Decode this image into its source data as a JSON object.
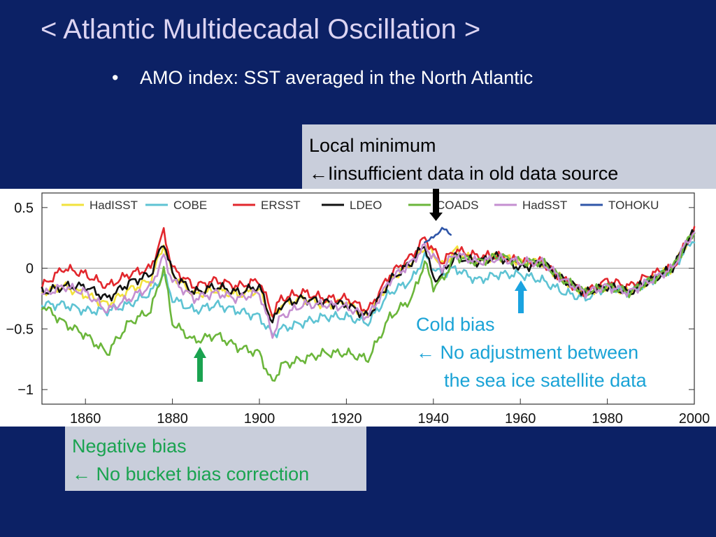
{
  "slide": {
    "title": "< Atlantic Multidecadal Oscillation >",
    "bullet_symbol": "•",
    "bullet_text": "AMO index: SST averaged in the North Atlantic"
  },
  "annotations": {
    "local_minimum": {
      "line1": "Local minimum",
      "line2": "←Iinsufficient data in old data source"
    },
    "cold_bias": {
      "line1": "Cold bias",
      "line2": "← No adjustment between",
      "line3": "the sea ice satellite data",
      "color": "#1aa3d6"
    },
    "negative_bias": {
      "line1": "Negative bias",
      "line2": "← No bucket bias correction",
      "color": "#1aa350"
    }
  },
  "colors": {
    "background": "#0c2165",
    "title": "#dcd4f2",
    "callout_box": "#c9cedb",
    "arrow_black": "#000000",
    "arrow_blue": "#1aa3e0",
    "arrow_green": "#1aa350"
  },
  "chart_data": {
    "type": "line",
    "title": "",
    "xlabel": "",
    "ylabel": "",
    "xlim": [
      1850,
      2000
    ],
    "ylim": [
      -1.12,
      0.62
    ],
    "xticks": [
      1860,
      1880,
      1900,
      1920,
      1940,
      1960,
      1980,
      2000
    ],
    "ytick_values": [
      0.5,
      0,
      -0.5,
      -1
    ],
    "ytick_labels": [
      "0.5",
      "0",
      "−0.5",
      "−1"
    ],
    "grid": false,
    "zero_line": true,
    "legend_position": "top",
    "x": [
      1850,
      1855,
      1860,
      1865,
      1870,
      1875,
      1878,
      1880,
      1885,
      1890,
      1895,
      1900,
      1903,
      1905,
      1910,
      1915,
      1920,
      1925,
      1930,
      1935,
      1938,
      1940,
      1942,
      1945,
      1950,
      1955,
      1960,
      1965,
      1970,
      1975,
      1980,
      1985,
      1990,
      1995,
      1998,
      2000
    ],
    "series": [
      {
        "name": "HadISST",
        "color": "#f2e23c",
        "values": [
          -0.2,
          -0.15,
          -0.22,
          -0.3,
          -0.18,
          -0.1,
          0.2,
          -0.05,
          -0.22,
          -0.18,
          -0.22,
          -0.18,
          -0.42,
          -0.3,
          -0.25,
          -0.3,
          -0.28,
          -0.4,
          -0.1,
          0.05,
          0.18,
          0.12,
          0.02,
          0.15,
          0.05,
          0.1,
          0.05,
          0.05,
          -0.1,
          -0.2,
          -0.15,
          -0.2,
          -0.1,
          0.0,
          0.18,
          0.28
        ]
      },
      {
        "name": "COBE",
        "color": "#5ec3d3",
        "values": [
          -0.3,
          -0.3,
          -0.35,
          -0.35,
          -0.3,
          -0.2,
          -0.05,
          -0.25,
          -0.35,
          -0.3,
          -0.35,
          -0.4,
          -0.55,
          -0.5,
          -0.45,
          -0.4,
          -0.4,
          -0.45,
          -0.2,
          -0.1,
          0.1,
          0.0,
          -0.05,
          0.0,
          -0.1,
          -0.05,
          -0.05,
          -0.1,
          -0.2,
          -0.25,
          -0.15,
          -0.2,
          -0.1,
          0.0,
          0.15,
          0.25
        ]
      },
      {
        "name": "ERSST",
        "color": "#e2272d",
        "values": [
          -0.15,
          0.0,
          -0.05,
          -0.15,
          -0.05,
          0.0,
          0.3,
          0.0,
          -0.15,
          -0.1,
          -0.15,
          -0.1,
          -0.38,
          -0.25,
          -0.2,
          -0.25,
          -0.25,
          -0.35,
          -0.05,
          0.1,
          0.25,
          0.15,
          0.05,
          0.15,
          0.1,
          0.1,
          0.05,
          0.05,
          -0.1,
          -0.2,
          -0.1,
          -0.15,
          -0.05,
          0.0,
          0.2,
          0.3
        ]
      },
      {
        "name": "LDEO",
        "color": "#111111",
        "values": [
          -0.2,
          -0.15,
          -0.15,
          -0.25,
          -0.12,
          -0.05,
          0.22,
          -0.05,
          -0.2,
          -0.15,
          -0.2,
          -0.15,
          -0.45,
          -0.3,
          -0.25,
          -0.28,
          -0.3,
          -0.4,
          -0.1,
          0.05,
          0.2,
          -0.1,
          -0.05,
          0.1,
          0.05,
          0.1,
          0.0,
          0.05,
          -0.1,
          -0.2,
          -0.15,
          -0.2,
          -0.1,
          0.0,
          0.2,
          0.3
        ]
      },
      {
        "name": "COADS",
        "color": "#6bb63b",
        "values": [
          -0.3,
          -0.45,
          -0.55,
          -0.7,
          -0.45,
          -0.35,
          0.0,
          -0.45,
          -0.6,
          -0.55,
          -0.65,
          -0.7,
          -0.95,
          -0.8,
          -0.75,
          -0.7,
          -0.7,
          -0.75,
          -0.4,
          -0.25,
          0.05,
          -0.15,
          -0.1,
          0.1,
          0.05,
          0.1,
          0.05,
          0.05,
          -0.1,
          -0.2,
          -0.15,
          -0.2,
          -0.1,
          0.0,
          0.2,
          0.3
        ]
      },
      {
        "name": "HadSST",
        "color": "#c58fd0",
        "values": [
          -0.22,
          -0.15,
          -0.2,
          -0.35,
          -0.25,
          -0.15,
          0.1,
          -0.1,
          -0.25,
          -0.2,
          -0.25,
          -0.2,
          -0.55,
          -0.4,
          -0.3,
          -0.3,
          -0.32,
          -0.4,
          -0.1,
          0.05,
          0.18,
          0.1,
          0.0,
          0.12,
          0.05,
          0.08,
          0.05,
          0.05,
          -0.1,
          -0.2,
          -0.15,
          -0.2,
          -0.1,
          0.0,
          0.2,
          0.3
        ]
      },
      {
        "name": "TOHOKU",
        "color": "#2f56a8",
        "x": [
          1938,
          1940,
          1942,
          1944
        ],
        "values": [
          0.22,
          0.25,
          0.33,
          0.28
        ]
      }
    ]
  }
}
